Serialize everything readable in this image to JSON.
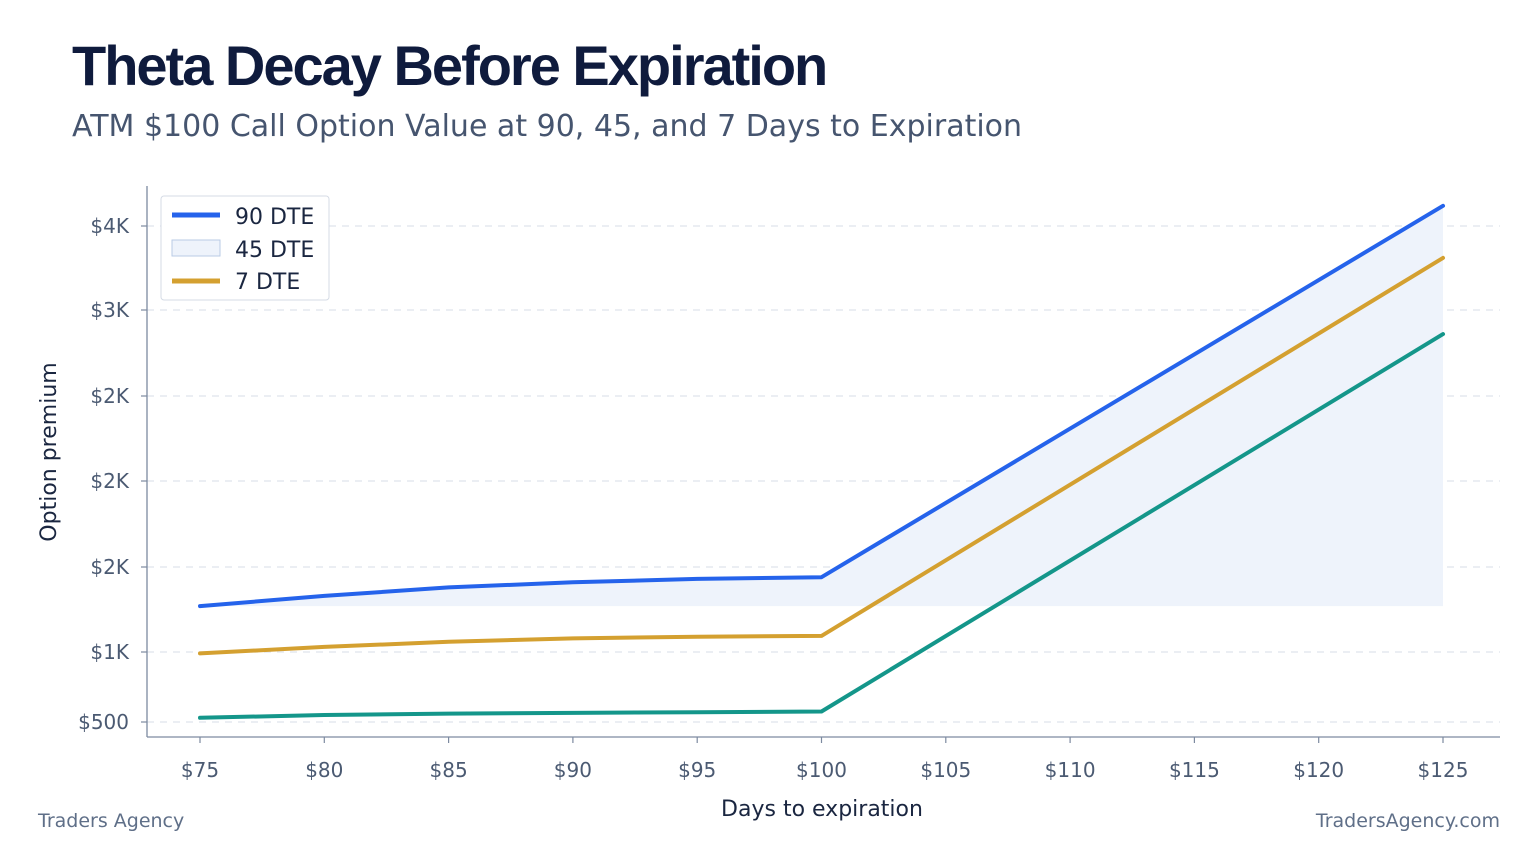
{
  "header": {
    "title": "Theta Decay Before Expiration",
    "subtitle": "ATM $100 Call Option Value at 90, 45, and 7 Days to Expiration"
  },
  "footer": {
    "left": "Traders Agency",
    "right": "TradersAgency.com"
  },
  "colors": {
    "series_90": "#2563eb",
    "series_45_fill": "#eef3fb",
    "series_45_border": "#b9cbe6",
    "series_7": "#d4a030",
    "series_teal": "#14968a",
    "grid": "#dfe4ec",
    "axis": "#7d8aa0"
  },
  "chart_data": {
    "type": "line",
    "xlabel": "Days to expiration",
    "ylabel": "Option premium",
    "x": [
      75,
      80,
      85,
      90,
      95,
      100,
      105,
      110,
      115,
      120,
      125
    ],
    "x_tick_labels": [
      "$75",
      "$80",
      "$85",
      "$90",
      "$95",
      "$100",
      "$105",
      "$110",
      "$115",
      "$120",
      "$125"
    ],
    "y_ticks": [
      500,
      1000,
      1500,
      2000,
      2500,
      3000,
      3500
    ],
    "y_tick_labels": [
      "$500",
      "$1K",
      "$2K",
      "$2K",
      "$2K",
      "$3K",
      "$4K"
    ],
    "ylim": [
      410,
      3620
    ],
    "grid": true,
    "legend_position": "top-left",
    "series": [
      {
        "name": "90 DTE",
        "style": "line",
        "x": [
          75,
          80,
          85,
          90,
          95,
          100,
          125
        ],
        "values": [
          1270,
          1330,
          1380,
          1410,
          1430,
          1440,
          3620
        ]
      },
      {
        "name": "45 DTE",
        "style": "area",
        "x": [
          75,
          80,
          85,
          90,
          95,
          100,
          125
        ],
        "values": [
          1270,
          1330,
          1380,
          1410,
          1430,
          1440,
          3620
        ],
        "baseline": 1270
      },
      {
        "name": "7 DTE",
        "style": "line",
        "x": [
          75,
          80,
          85,
          90,
          95,
          100,
          125
        ],
        "values": [
          990,
          1030,
          1060,
          1080,
          1090,
          1095,
          3310
        ]
      },
      {
        "style": "line",
        "x": [
          75,
          80,
          85,
          90,
          95,
          100,
          125
        ],
        "values": [
          530,
          550,
          560,
          565,
          570,
          575,
          2860
        ]
      }
    ]
  }
}
